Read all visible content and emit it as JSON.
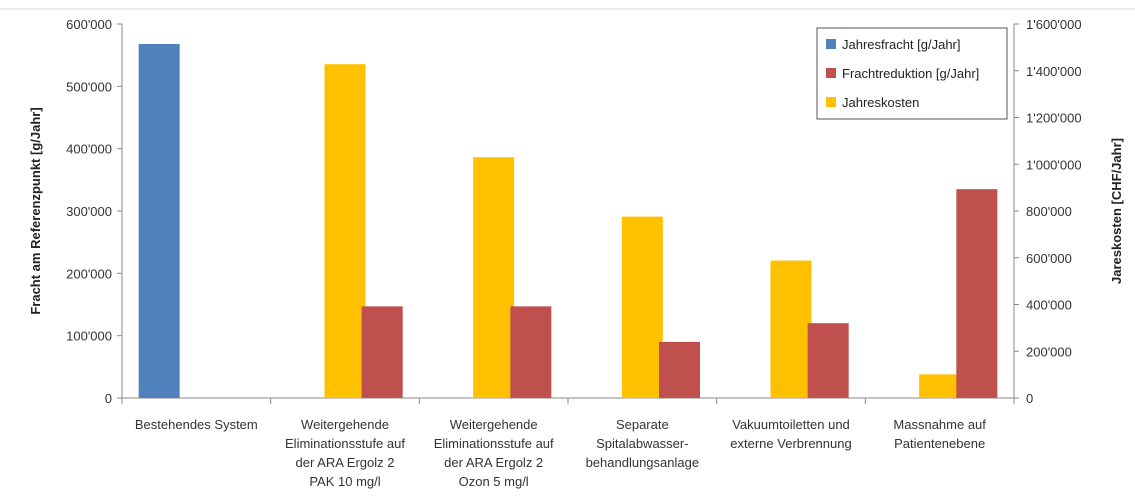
{
  "chart_data": {
    "type": "bar",
    "title": "",
    "categories": [
      [
        "Bestehendes System"
      ],
      [
        "Weitergehende",
        "Eliminationsstufe auf",
        "der ARA Ergolz 2",
        "PAK 10 mg/l"
      ],
      [
        "Weitergehende",
        "Eliminationsstufe auf",
        "der ARA Ergolz 2",
        "Ozon 5 mg/l"
      ],
      [
        "Separate",
        "Spitalabwasser-",
        "behandlungsanlage"
      ],
      [
        "Vakuumtoiletten und",
        "externe Verbrennung"
      ],
      [
        "Massnahme auf",
        "Patientenebene"
      ]
    ],
    "series": [
      {
        "name": "Jahresfracht [g/Jahr]",
        "axis": "left",
        "color": "#4f81bd",
        "values": [
          568000,
          null,
          null,
          null,
          null,
          null
        ]
      },
      {
        "name": "Frachtreduktion [g/Jahr]",
        "axis": "left",
        "color": "#c0504d",
        "values": [
          null,
          147000,
          147000,
          90000,
          120000,
          335000
        ]
      },
      {
        "name": "Jahreskosten",
        "axis": "right",
        "color": "#ffc000",
        "values": [
          null,
          1428000,
          1030000,
          776000,
          588000,
          101000
        ]
      }
    ],
    "ylabel": "Fracht am Referenzpunkt [g/Jahr]",
    "y2label": "Jareskosten [CHF/Jahr]",
    "ylim": [
      0,
      600000
    ],
    "y2lim": [
      0,
      1600000
    ],
    "yticks": [
      "0",
      "100'000",
      "200'000",
      "300'000",
      "400'000",
      "500'000",
      "600'000"
    ],
    "y2ticks": [
      "0",
      "200'000",
      "400'000",
      "600'000",
      "800'000",
      "1'000'000",
      "1'200'000",
      "1'400'000",
      "1'600'000"
    ],
    "legend_position": "top-right",
    "grid": false
  }
}
